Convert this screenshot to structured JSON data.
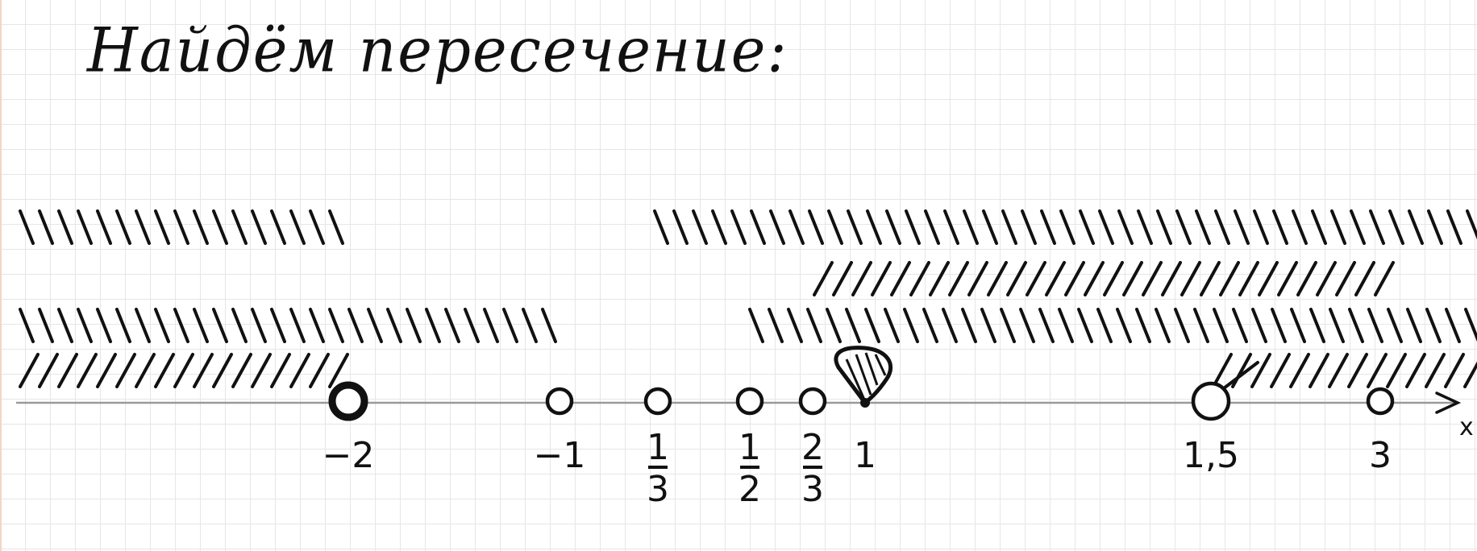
{
  "title": "Найдём пересечение:",
  "axis": {
    "variable": "x",
    "color": "#9a9a9a"
  },
  "points": [
    {
      "label": "−2",
      "num": "",
      "den": "",
      "type": "open-bold"
    },
    {
      "label": "−1",
      "num": "",
      "den": "",
      "type": "open"
    },
    {
      "label": "",
      "num": "1",
      "den": "3",
      "type": "open"
    },
    {
      "label": "",
      "num": "1",
      "den": "2",
      "type": "open"
    },
    {
      "label": "",
      "num": "2",
      "den": "3",
      "type": "open"
    },
    {
      "label": "1",
      "num": "",
      "den": "",
      "type": "filled"
    },
    {
      "label": "1,5",
      "num": "",
      "den": "",
      "type": "open-large"
    },
    {
      "label": "3",
      "num": "",
      "den": "",
      "type": "open"
    }
  ],
  "hatching_rows": [
    {
      "row": 1,
      "direction": "backslash",
      "segments": [
        [
          "−∞",
          "−2"
        ],
        [
          "−1",
          "+∞"
        ]
      ]
    },
    {
      "row": 2,
      "direction": "slash",
      "segments": [
        [
          "1",
          "+∞"
        ]
      ]
    },
    {
      "row": 3,
      "direction": "backslash",
      "segments": [
        [
          "−∞",
          "−1"
        ],
        [
          "2/3",
          "+∞"
        ]
      ]
    },
    {
      "row": 4,
      "direction": "slash",
      "segments": [
        [
          "−∞",
          "−2"
        ],
        [
          "1,5",
          "+∞"
        ]
      ]
    }
  ],
  "ink_color": "#111111"
}
